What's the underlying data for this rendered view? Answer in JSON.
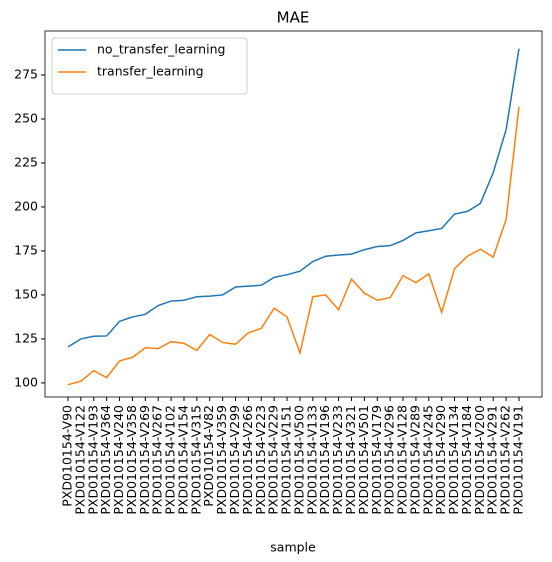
{
  "chart_data": {
    "type": "line",
    "title": "MAE",
    "x_label": "sample",
    "categories": [
      "PXD010154-V90",
      "PXD010154-V122",
      "PXD010154-V193",
      "PXD010154-V364",
      "PXD010154-V240",
      "PXD010154-V358",
      "PXD010154-V269",
      "PXD010154-V267",
      "PXD010154-V102",
      "PXD010154-V154",
      "PXD010154-V315",
      "PXD010154-V82",
      "PXD010154-V359",
      "PXD010154-V299",
      "PXD010154-V266",
      "PXD010154-V223",
      "PXD010154-V229",
      "PXD010154-V151",
      "PXD010154-V500",
      "PXD010154-V133",
      "PXD010154-V196",
      "PXD010154-V233",
      "PXD010154-V321",
      "PXD010154-V501",
      "PXD010154-V179",
      "PXD010154-V296",
      "PXD010154-V128",
      "PXD010154-V289",
      "PXD010154-V245",
      "PXD010154-V290",
      "PXD010154-V134",
      "PXD010154-V184",
      "PXD010154-V200",
      "PXD010154-V291",
      "PXD010154-V262",
      "PXD010154-V191"
    ],
    "series": [
      {
        "name": "no_transfer_learning",
        "color": "#1f77b4",
        "values": [
          120.5,
          125,
          126.5,
          126.7,
          135,
          137.5,
          139,
          144,
          146.5,
          147,
          149,
          149.3,
          150,
          154.5,
          155,
          155.5,
          160,
          161.5,
          163.5,
          169,
          172,
          172.7,
          173.2,
          175.7,
          177.5,
          178,
          181,
          185.3,
          186.5,
          187.8,
          196,
          197.5,
          202,
          219.5,
          244,
          290
        ]
      },
      {
        "name": "transfer_learning",
        "color": "#ff7f0e",
        "values": [
          99,
          101,
          107,
          103,
          112.5,
          114.5,
          120,
          119.5,
          123.5,
          122.5,
          118.5,
          127.5,
          123,
          122,
          128.5,
          131,
          142.5,
          137.5,
          117,
          149,
          150,
          141.5,
          159,
          151,
          147,
          148.5,
          161,
          157,
          162,
          140,
          165,
          172,
          176,
          171.5,
          193,
          257
        ]
      }
    ],
    "ylim": [
      92,
      300
    ],
    "yticks": [
      100,
      125,
      150,
      175,
      200,
      225,
      250,
      275
    ],
    "legend": "upper left"
  }
}
